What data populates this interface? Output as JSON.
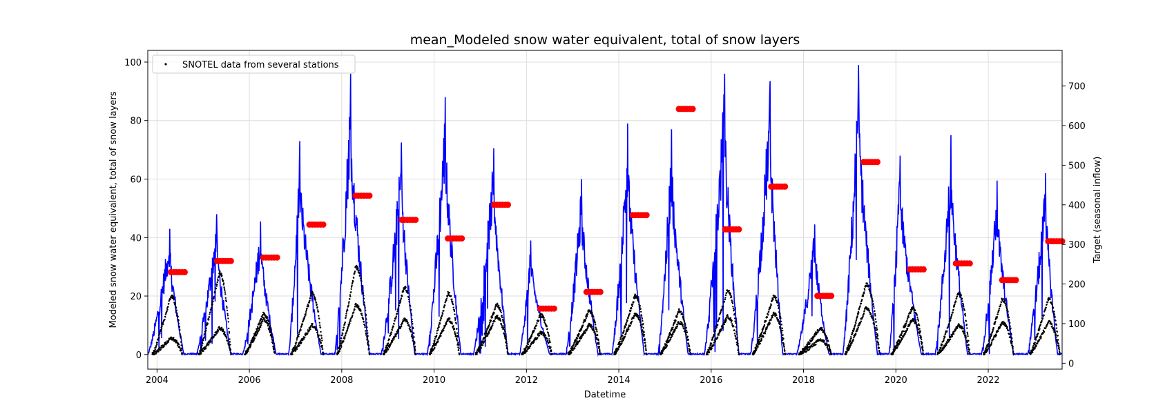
{
  "chart_data": {
    "type": "line",
    "title": "mean_Modeled snow water equivalent, total of snow layers",
    "xlabel": "Datetime",
    "ylabel": "Modeled snow water equivalent, total of snow layers",
    "y2label": "Target (seasonal inflow)",
    "xlim": [
      2003.8,
      2023.6
    ],
    "ylim": [
      -5,
      104
    ],
    "y2lim": [
      -15,
      790
    ],
    "x_ticks": [
      2004,
      2006,
      2008,
      2010,
      2012,
      2014,
      2016,
      2018,
      2020,
      2022
    ],
    "x_tick_labels": [
      "2004",
      "2006",
      "2008",
      "2010",
      "2012",
      "2014",
      "2016",
      "2018",
      "2020",
      "2022"
    ],
    "y_ticks": [
      0,
      20,
      40,
      60,
      80,
      100
    ],
    "y_tick_labels": [
      "0",
      "20",
      "40",
      "60",
      "80",
      "100"
    ],
    "y2_ticks": [
      0,
      100,
      200,
      300,
      400,
      500,
      600,
      700
    ],
    "y2_tick_labels": [
      "0",
      "100",
      "200",
      "300",
      "400",
      "500",
      "600",
      "700"
    ],
    "grid": true,
    "legend": {
      "position": "top-left",
      "entries": [
        "SNOTEL data from several stations"
      ]
    },
    "colors": {
      "model": "#0000ff",
      "snotel": "#000000",
      "target": "#ff0000"
    },
    "series": [
      {
        "name": "Modeled SWE (mean)",
        "type": "line",
        "axis": "left",
        "seasons": [
          {
            "start": 2003.8,
            "peak_x": 2004.28,
            "peak": 43,
            "melt_end": 2004.58
          },
          {
            "start": 2004.85,
            "peak_x": 2005.3,
            "peak": 48,
            "melt_end": 2005.6
          },
          {
            "start": 2005.85,
            "peak_x": 2006.25,
            "peak": 45.5,
            "melt_end": 2006.58
          },
          {
            "start": 2006.85,
            "peak_x": 2007.1,
            "peak": 73,
            "melt_end": 2007.55
          },
          {
            "start": 2007.85,
            "peak_x": 2008.2,
            "peak": 96,
            "melt_end": 2008.6
          },
          {
            "start": 2008.85,
            "peak_x": 2009.3,
            "peak": 72.5,
            "melt_end": 2009.58
          },
          {
            "start": 2009.85,
            "peak_x": 2010.25,
            "peak": 88,
            "melt_end": 2010.58
          },
          {
            "start": 2010.85,
            "peak_x": 2011.3,
            "peak": 70.5,
            "melt_end": 2011.6
          },
          {
            "start": 2011.85,
            "peak_x": 2012.1,
            "peak": 39,
            "melt_end": 2012.5
          },
          {
            "start": 2012.85,
            "peak_x": 2013.2,
            "peak": 60,
            "melt_end": 2013.55
          },
          {
            "start": 2013.85,
            "peak_x": 2014.2,
            "peak": 79,
            "melt_end": 2014.55
          },
          {
            "start": 2014.85,
            "peak_x": 2015.15,
            "peak": 77,
            "melt_end": 2015.5
          },
          {
            "start": 2015.85,
            "peak_x": 2016.3,
            "peak": 96,
            "melt_end": 2016.6
          },
          {
            "start": 2016.85,
            "peak_x": 2017.28,
            "peak": 93.5,
            "melt_end": 2017.55
          },
          {
            "start": 2017.85,
            "peak_x": 2018.25,
            "peak": 44.5,
            "melt_end": 2018.55
          },
          {
            "start": 2018.85,
            "peak_x": 2019.2,
            "peak": 99,
            "melt_end": 2019.6
          },
          {
            "start": 2019.85,
            "peak_x": 2020.1,
            "peak": 68,
            "melt_end": 2020.55
          },
          {
            "start": 2020.85,
            "peak_x": 2021.2,
            "peak": 75,
            "melt_end": 2021.55
          },
          {
            "start": 2021.85,
            "peak_x": 2022.2,
            "peak": 59.5,
            "melt_end": 2022.55
          },
          {
            "start": 2022.85,
            "peak_x": 2023.25,
            "peak": 62,
            "melt_end": 2023.5
          }
        ]
      },
      {
        "name": "SNOTEL data from several stations",
        "type": "scatter",
        "axis": "left",
        "seasons": [
          {
            "start": 2003.9,
            "peaks": [
              5.5,
              20
            ],
            "peak_x": 2004.3,
            "melt_end": 2004.55
          },
          {
            "start": 2004.9,
            "peaks": [
              9,
              28
            ],
            "peak_x": 2005.35,
            "melt_end": 2005.6
          },
          {
            "start": 2005.9,
            "peaks": [
              14,
              12
            ],
            "peak_x": 2006.3,
            "melt_end": 2006.55
          },
          {
            "start": 2006.9,
            "peaks": [
              21,
              10
            ],
            "peak_x": 2007.35,
            "melt_end": 2007.6
          },
          {
            "start": 2007.9,
            "peaks": [
              30,
              17
            ],
            "peak_x": 2008.3,
            "melt_end": 2008.6
          },
          {
            "start": 2008.9,
            "peaks": [
              23,
              12
            ],
            "peak_x": 2009.35,
            "melt_end": 2009.6
          },
          {
            "start": 2009.9,
            "peaks": [
              21,
              12
            ],
            "peak_x": 2010.3,
            "melt_end": 2010.55
          },
          {
            "start": 2010.9,
            "peaks": [
              17,
              13
            ],
            "peak_x": 2011.35,
            "melt_end": 2011.6
          },
          {
            "start": 2011.9,
            "peaks": [
              13.5,
              7.5
            ],
            "peak_x": 2012.3,
            "melt_end": 2012.55
          },
          {
            "start": 2012.9,
            "peaks": [
              15,
              10
            ],
            "peak_x": 2013.35,
            "melt_end": 2013.6
          },
          {
            "start": 2013.9,
            "peaks": [
              20,
              14
            ],
            "peak_x": 2014.35,
            "melt_end": 2014.6
          },
          {
            "start": 2014.9,
            "peaks": [
              15,
              11
            ],
            "peak_x": 2015.3,
            "melt_end": 2015.55
          },
          {
            "start": 2015.9,
            "peaks": [
              22,
              13
            ],
            "peak_x": 2016.35,
            "melt_end": 2016.6
          },
          {
            "start": 2016.9,
            "peaks": [
              20,
              14
            ],
            "peak_x": 2017.35,
            "melt_end": 2017.6
          },
          {
            "start": 2017.9,
            "peaks": [
              9,
              5
            ],
            "peak_x": 2018.35,
            "melt_end": 2018.6
          },
          {
            "start": 2018.9,
            "peaks": [
              24,
              16
            ],
            "peak_x": 2019.35,
            "melt_end": 2019.65
          },
          {
            "start": 2019.9,
            "peaks": [
              16,
              12
            ],
            "peak_x": 2020.35,
            "melt_end": 2020.6
          },
          {
            "start": 2020.9,
            "peaks": [
              21,
              10
            ],
            "peak_x": 2021.35,
            "melt_end": 2021.6
          },
          {
            "start": 2021.9,
            "peaks": [
              19,
              11
            ],
            "peak_x": 2022.3,
            "melt_end": 2022.55
          },
          {
            "start": 2022.9,
            "peaks": [
              19,
              11
            ],
            "peak_x": 2023.3,
            "melt_end": 2023.55
          }
        ]
      },
      {
        "name": "Target (seasonal inflow)",
        "type": "scatter",
        "axis": "right",
        "points": [
          {
            "year": 2004,
            "value": 230
          },
          {
            "year": 2005,
            "value": 258
          },
          {
            "year": 2006,
            "value": 267
          },
          {
            "year": 2007,
            "value": 350
          },
          {
            "year": 2008,
            "value": 423
          },
          {
            "year": 2009,
            "value": 362
          },
          {
            "year": 2010,
            "value": 315
          },
          {
            "year": 2011,
            "value": 400
          },
          {
            "year": 2012,
            "value": 138
          },
          {
            "year": 2013,
            "value": 180
          },
          {
            "year": 2014,
            "value": 374
          },
          {
            "year": 2015,
            "value": 642
          },
          {
            "year": 2016,
            "value": 338
          },
          {
            "year": 2017,
            "value": 446
          },
          {
            "year": 2018,
            "value": 170
          },
          {
            "year": 2019,
            "value": 508
          },
          {
            "year": 2020,
            "value": 237
          },
          {
            "year": 2021,
            "value": 252
          },
          {
            "year": 2022,
            "value": 210
          },
          {
            "year": 2023,
            "value": 308
          }
        ]
      }
    ]
  }
}
